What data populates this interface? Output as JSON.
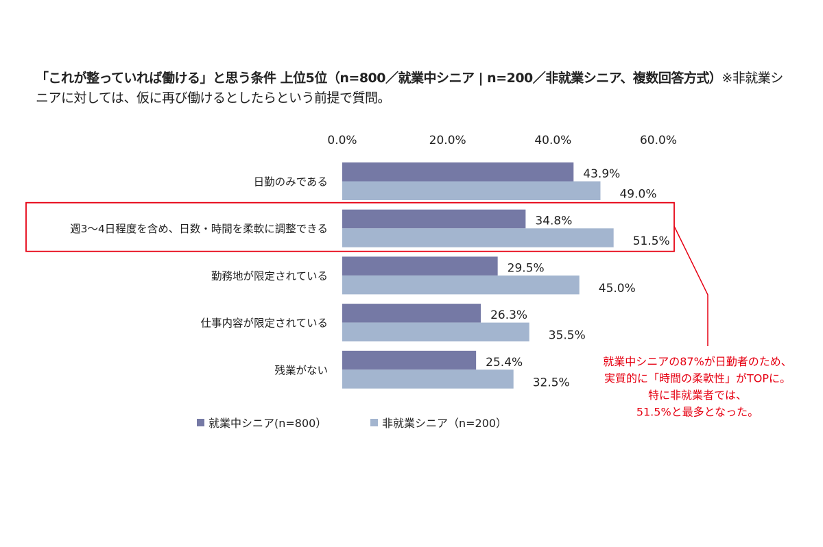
{
  "title": {
    "bold": "「これが整っていれば働ける」と思う条件 上位5位（n=800／就業中シニア | n=200／非就業シニア、複数回答方式）",
    "normal": "※非就業シニアに対しては、仮に再び働けるとしたらという前提で質問。"
  },
  "chart_data": {
    "type": "bar",
    "orientation": "horizontal",
    "categories": [
      "日勤のみである",
      "週3～4日程度を含め、日数・時間を柔軟に調整できる",
      "勤務地が限定されている",
      "仕事内容が限定されている",
      "残業がない"
    ],
    "series": [
      {
        "name": "就業中シニア(n=800）",
        "color": "#7579a5",
        "values": [
          43.9,
          34.8,
          29.5,
          26.3,
          25.4
        ],
        "labels": [
          "43.9%",
          "34.8%",
          "29.5%",
          "26.3%",
          "25.4%"
        ]
      },
      {
        "name": "非就業シニア（n=200）",
        "color": "#a3b5cf",
        "values": [
          49.0,
          51.5,
          45.0,
          35.5,
          32.5
        ],
        "labels": [
          "49.0%",
          "51.5%",
          "45.0%",
          "35.5%",
          "32.5%"
        ]
      }
    ],
    "xlim": [
      0,
      60
    ],
    "x_ticks": [
      "0.0%",
      "20.0%",
      "40.0%",
      "60.0%"
    ],
    "x_axis_position": "top",
    "grid": false,
    "legend": "bottom",
    "highlight_category_index": 1,
    "highlight_color": "#e60012",
    "annotation": [
      "就業中シニアの87%が日勤者のため、",
      "実質的に「時間の柔軟性」がTOPに。",
      "特に非就業者では、",
      "51.5%と最多となった。"
    ]
  }
}
